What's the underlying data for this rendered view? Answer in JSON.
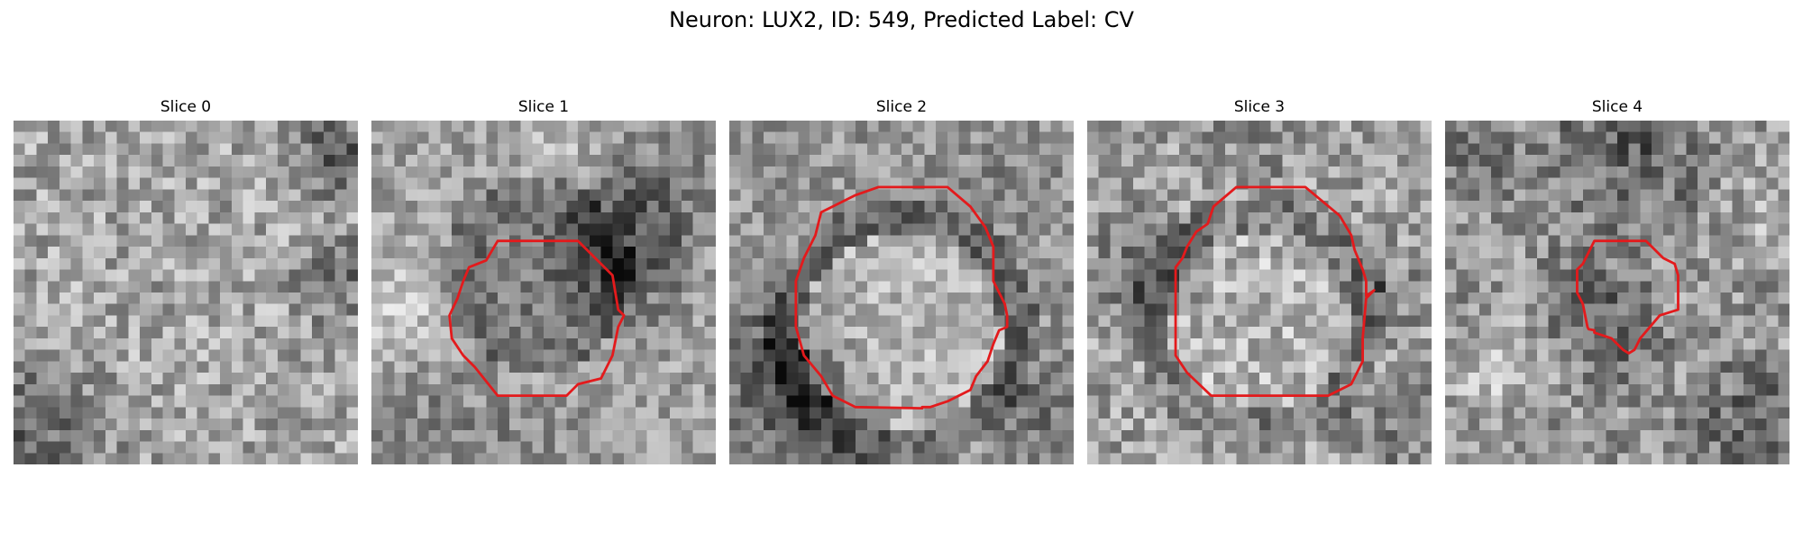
{
  "figure": {
    "title": "Neuron: LUX2, ID: 549, Predicted Label: CV"
  },
  "panels": [
    {
      "title": "Slice 0"
    },
    {
      "title": "Slice 1"
    },
    {
      "title": "Slice 2"
    },
    {
      "title": "Slice 3"
    },
    {
      "title": "Slice 4"
    }
  ],
  "style": {
    "contour_color": "#e31a1c",
    "colormap": "grayscale"
  }
}
